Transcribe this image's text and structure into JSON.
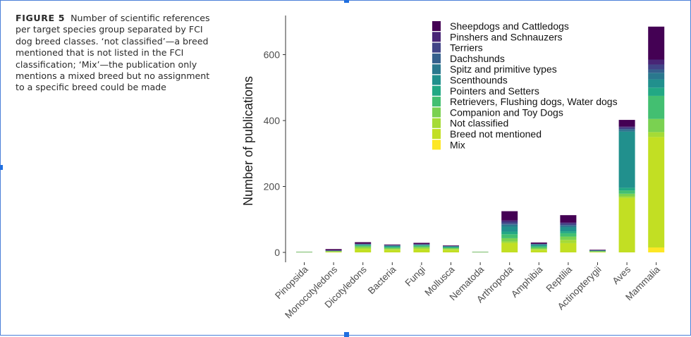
{
  "caption": {
    "figure_label": "FIGURE 5",
    "text": "Number of scientific references per target species group separated by FCI dog breed classes. ‘not classified’—a breed mentioned that is not listed in the FCI classification; ‘Mix’—the publication only mentions a mixed breed but no assignment to a specific breed could be made"
  },
  "colors": {
    "Sheepdogs and Cattledogs": "#440154",
    "Pinshers and Schnauzers": "#482576",
    "Terriers": "#414487",
    "Dachshunds": "#35608d",
    "Spitz and primitive types": "#2a788e",
    "Scenthounds": "#21908d",
    "Pointers and Setters": "#22a884",
    "Retrievers, Flushing dogs, Water dogs": "#43bf71",
    "Companion and Toy Dogs": "#7ad151",
    "Not classified": "#a5db36",
    "Breed not mentioned": "#c2df23",
    "Mix": "#fde725"
  },
  "chart_data": {
    "type": "bar",
    "stacked": true,
    "ylabel": "Number of publications",
    "xlabel": "",
    "ylim": [
      0,
      700
    ],
    "yticks": [
      0,
      200,
      400,
      600
    ],
    "grid": false,
    "legend_position": "top-right",
    "categories": [
      "Pinopsida",
      "Monocotyledons",
      "Dicotyledons",
      "Bacteria",
      "Fungi",
      "Mollusca",
      "Nematoda",
      "Arthropoda",
      "Amphibia",
      "Reptilia",
      "Actinopterygii",
      "Aves",
      "Mammalia"
    ],
    "series": [
      {
        "name": "Mix",
        "values": [
          0,
          0,
          0,
          0,
          0,
          0,
          0,
          0,
          0,
          0,
          0,
          0,
          15
        ]
      },
      {
        "name": "Breed not mentioned",
        "values": [
          1,
          3,
          10,
          8,
          10,
          8,
          1,
          28,
          8,
          28,
          2,
          165,
          335
        ]
      },
      {
        "name": "Not classified",
        "values": [
          0,
          0,
          4,
          2,
          3,
          2,
          0,
          5,
          2,
          10,
          0,
          5,
          15
        ]
      },
      {
        "name": "Companion and Toy Dogs",
        "values": [
          0,
          0,
          4,
          3,
          4,
          3,
          0,
          10,
          4,
          10,
          1,
          8,
          40
        ]
      },
      {
        "name": "Retrievers, Flushing dogs, Water dogs",
        "values": [
          0,
          1,
          3,
          3,
          3,
          2,
          0,
          12,
          4,
          10,
          1,
          10,
          70
        ]
      },
      {
        "name": "Pointers and Setters",
        "values": [
          0,
          0,
          1,
          1,
          1,
          1,
          0,
          8,
          2,
          6,
          0,
          8,
          25
        ]
      },
      {
        "name": "Scenthounds",
        "values": [
          1,
          1,
          2,
          3,
          2,
          2,
          1,
          15,
          4,
          12,
          2,
          170,
          25
        ]
      },
      {
        "name": "Spitz and primitive types",
        "values": [
          0,
          0,
          1,
          1,
          1,
          1,
          0,
          6,
          1,
          4,
          0,
          5,
          20
        ]
      },
      {
        "name": "Dachshunds",
        "values": [
          0,
          0,
          0,
          0,
          0,
          0,
          0,
          3,
          0,
          3,
          0,
          3,
          10
        ]
      },
      {
        "name": "Terriers",
        "values": [
          0,
          1,
          1,
          1,
          1,
          0,
          0,
          6,
          1,
          5,
          0,
          5,
          15
        ]
      },
      {
        "name": "Pinshers and Schnauzers",
        "values": [
          0,
          0,
          0,
          0,
          0,
          0,
          0,
          4,
          0,
          3,
          0,
          3,
          15
        ]
      },
      {
        "name": "Sheepdogs and Cattledogs",
        "values": [
          0,
          4,
          5,
          2,
          4,
          2,
          0,
          28,
          4,
          22,
          2,
          20,
          100
        ]
      }
    ],
    "legend_order": [
      "Sheepdogs and Cattledogs",
      "Pinshers and Schnauzers",
      "Terriers",
      "Dachshunds",
      "Spitz and primitive types",
      "Scenthounds",
      "Pointers and Setters",
      "Retrievers, Flushing dogs, Water dogs",
      "Companion and Toy Dogs",
      "Not classified",
      "Breed not mentioned",
      "Mix"
    ]
  }
}
